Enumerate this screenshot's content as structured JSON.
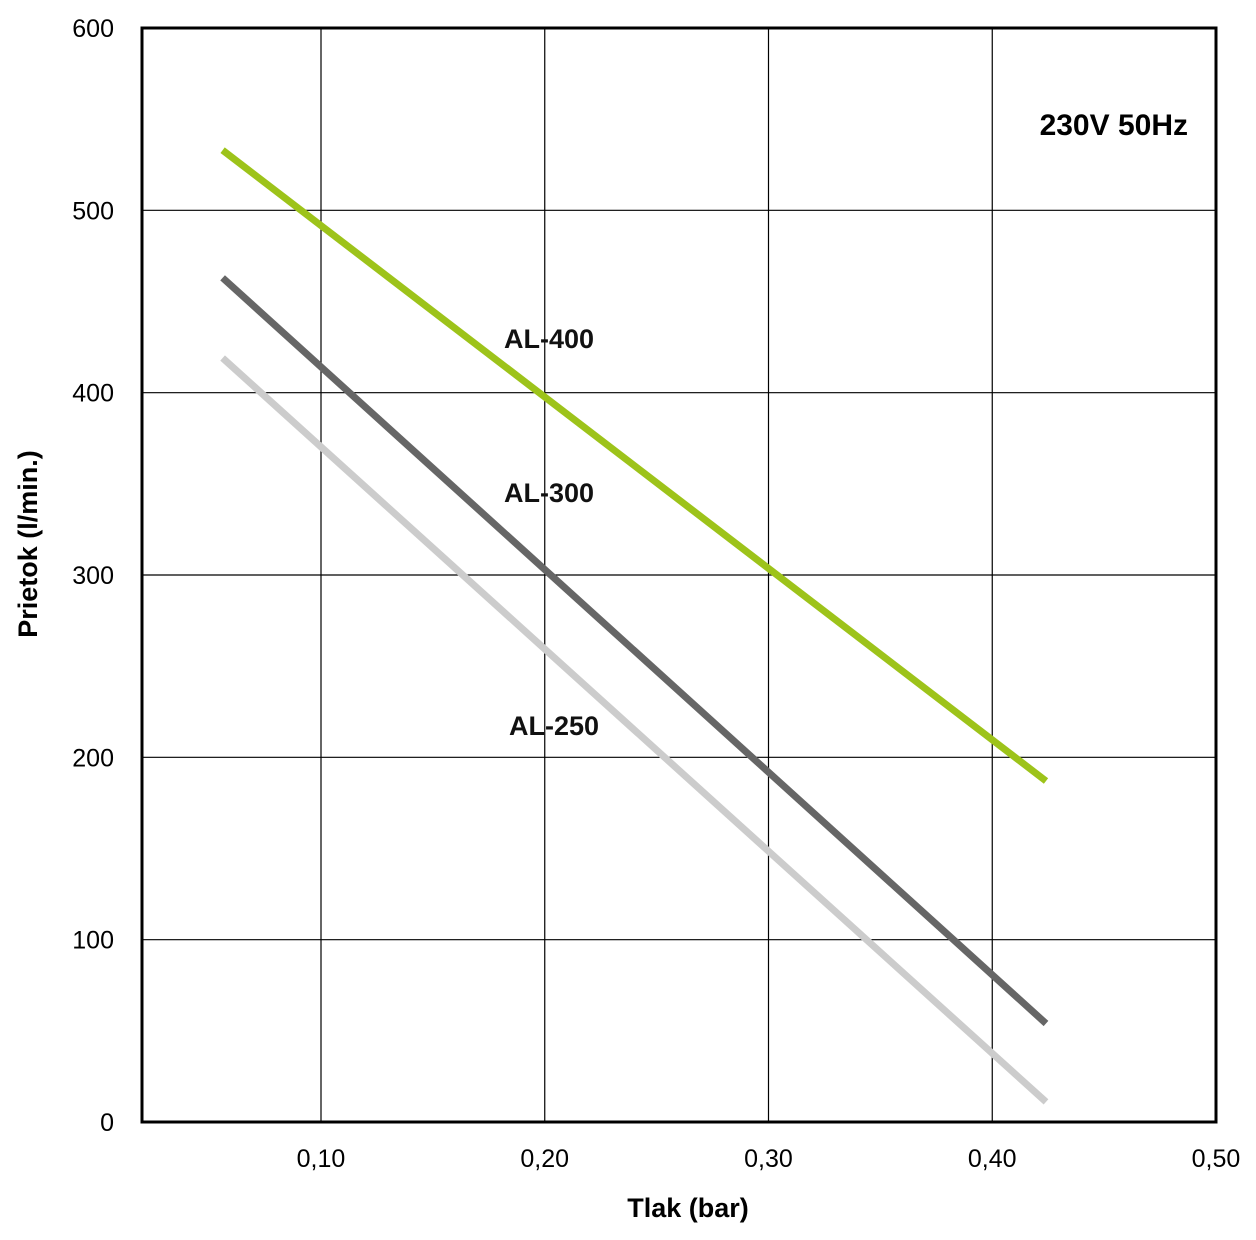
{
  "chart_data": {
    "type": "line",
    "title": "",
    "annotation": "230V 50Hz",
    "xlabel": "Tlak (bar)",
    "ylabel": "Prietok (l/min.)",
    "xlim": [
      0.02,
      0.5
    ],
    "ylim": [
      0,
      600
    ],
    "x_ticks": [
      0.1,
      0.2,
      0.3,
      0.4,
      0.5
    ],
    "x_tick_labels": [
      "0,10",
      "0,20",
      "0,30",
      "0,40",
      "0,50"
    ],
    "y_ticks": [
      0,
      100,
      200,
      300,
      400,
      500,
      600
    ],
    "y_tick_labels": [
      "0",
      "100",
      "200",
      "300",
      "400",
      "500",
      "600"
    ],
    "grid": true,
    "series": [
      {
        "name": "AL-400",
        "color": "#9dc31a",
        "x": [
          0.056,
          0.424
        ],
        "y": [
          533,
          187
        ]
      },
      {
        "name": "AL-300",
        "color": "#666666",
        "x": [
          0.056,
          0.424
        ],
        "y": [
          463,
          54
        ]
      },
      {
        "name": "AL-250",
        "color": "#cccccc",
        "x": [
          0.056,
          0.424
        ],
        "y": [
          419,
          11
        ]
      }
    ]
  }
}
